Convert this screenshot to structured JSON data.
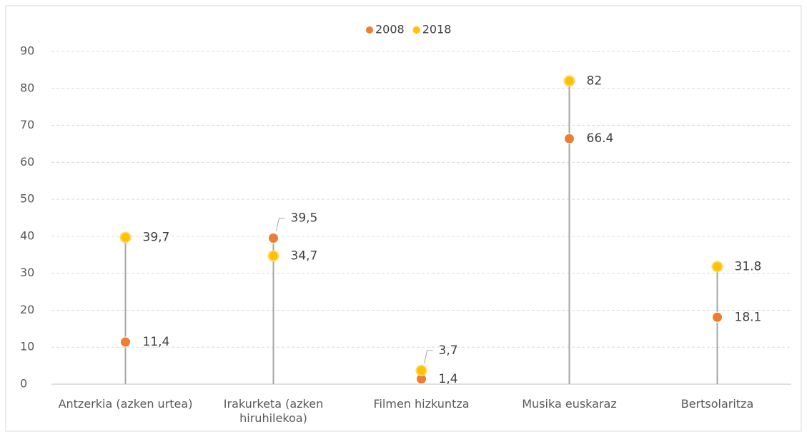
{
  "chart_data": {
    "type": "dot",
    "categories": [
      "Antzerkia (azken urtea)",
      "Irakurketa (azken hiruhilekoa)",
      "Filmen hizkuntza",
      "Musika euskaraz",
      "Bertsolaritza"
    ],
    "series": [
      {
        "name": "2008",
        "color": "#ed7d31",
        "values": [
          11.4,
          39.5,
          1.4,
          66.4,
          18.1
        ],
        "value_labels": [
          "11,4",
          "39,5",
          "1,4",
          "66.4",
          "18.1"
        ]
      },
      {
        "name": "2018",
        "color": "#ffc000",
        "values": [
          39.7,
          34.7,
          3.7,
          82,
          31.8
        ],
        "value_labels": [
          "39,7",
          "34,7",
          "3,7",
          "82",
          "31.8"
        ]
      }
    ],
    "ylim": [
      0,
      90
    ],
    "yticks": [
      0,
      10,
      20,
      30,
      40,
      50,
      60,
      70,
      80,
      90
    ],
    "grid": true,
    "legend": "top"
  }
}
